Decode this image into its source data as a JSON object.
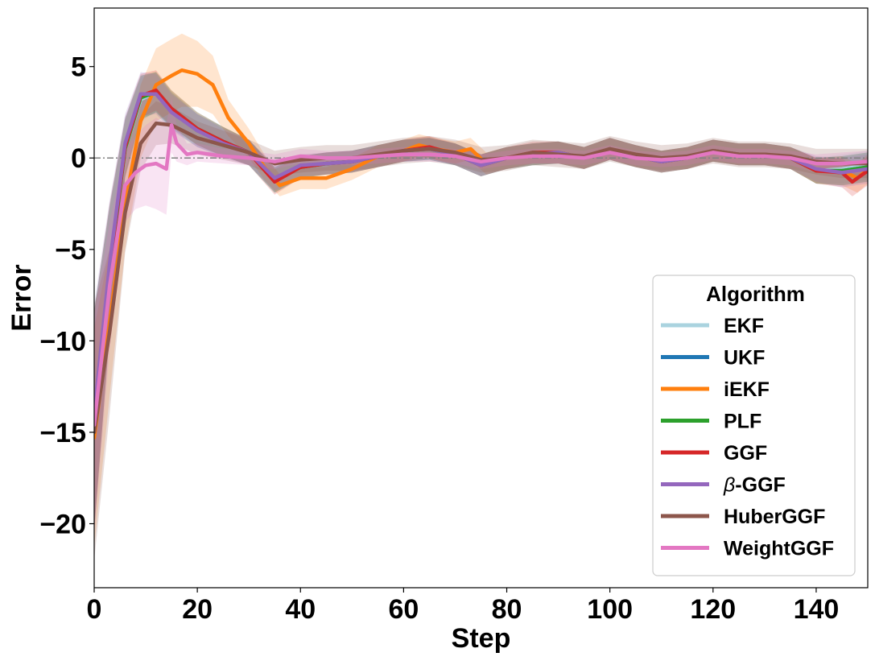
{
  "chart_data": {
    "type": "line",
    "title": "",
    "xlabel": "Step",
    "ylabel": "Error",
    "xlim": [
      0,
      150
    ],
    "ylim": [
      -23.5,
      8.2
    ],
    "xticks": [
      0,
      20,
      40,
      60,
      80,
      100,
      120,
      140
    ],
    "yticks": [
      5,
      0,
      -5,
      -10,
      -15,
      -20
    ],
    "ytick_labels": [
      "5",
      "0",
      "−5",
      "−10",
      "−15",
      "−20"
    ],
    "reference_line": {
      "y": 0,
      "style": "dash-dot",
      "color": "#808080"
    },
    "grid": false,
    "legend": {
      "title": "Algorithm",
      "placement": "lower-right",
      "entries": [
        "EKF",
        "UKF",
        "iEKF",
        "PLF",
        "GGF",
        "β-GGF",
        "HuberGGF",
        "WeightGGF"
      ]
    },
    "series": [
      {
        "name": "EKF",
        "color": "#aad3df",
        "band_color": "#aad3df",
        "x": [
          0,
          3,
          6,
          9,
          12,
          15,
          20,
          25,
          30,
          35,
          40,
          45,
          50,
          55,
          60,
          65,
          70,
          75,
          80,
          85,
          90,
          95,
          100,
          105,
          110,
          115,
          120,
          125,
          130,
          135,
          140,
          145,
          150
        ],
        "y": [
          -14.5,
          -6,
          0.5,
          3.2,
          3.6,
          2.6,
          1.6,
          0.9,
          0.3,
          -1.2,
          -0.5,
          -0.3,
          -0.2,
          0.1,
          0.4,
          0.5,
          0.2,
          -0.4,
          0.0,
          0.2,
          0.3,
          0.0,
          0.5,
          0.1,
          -0.2,
          0.0,
          0.4,
          0.2,
          0.2,
          0.0,
          -0.7,
          -0.6,
          -0.4
        ],
        "spread": [
          6,
          3.5,
          1.6,
          1.2,
          1.1,
          1.0,
          0.9,
          0.8,
          0.7,
          0.7,
          0.6,
          0.6,
          0.6,
          0.6,
          0.6,
          0.6,
          0.6,
          0.6,
          0.6,
          0.6,
          0.6,
          0.6,
          0.6,
          0.6,
          0.6,
          0.6,
          0.6,
          0.6,
          0.6,
          0.6,
          0.7,
          0.8,
          0.8
        ]
      },
      {
        "name": "UKF",
        "color": "#1f77b4",
        "band_color": "#1f77b4",
        "x": [
          0,
          3,
          6,
          9,
          12,
          15,
          20,
          25,
          30,
          35,
          40,
          45,
          50,
          55,
          60,
          65,
          70,
          75,
          80,
          85,
          90,
          95,
          100,
          105,
          110,
          115,
          120,
          125,
          130,
          135,
          140,
          145,
          150
        ],
        "y": [
          -14.3,
          -6.2,
          0.6,
          3.3,
          3.6,
          2.6,
          1.5,
          0.9,
          0.3,
          -1.2,
          -0.5,
          -0.3,
          -0.2,
          0.1,
          0.4,
          0.5,
          0.2,
          -0.4,
          0.0,
          0.2,
          0.3,
          0.0,
          0.5,
          0.1,
          -0.2,
          0.0,
          0.4,
          0.2,
          0.2,
          0.0,
          -0.7,
          -0.7,
          -0.5
        ],
        "spread": [
          6,
          3.5,
          1.6,
          1.2,
          1.1,
          1.0,
          0.9,
          0.8,
          0.7,
          0.7,
          0.6,
          0.6,
          0.6,
          0.6,
          0.6,
          0.6,
          0.6,
          0.6,
          0.6,
          0.6,
          0.6,
          0.6,
          0.6,
          0.6,
          0.6,
          0.6,
          0.6,
          0.6,
          0.6,
          0.6,
          0.7,
          0.8,
          0.8
        ]
      },
      {
        "name": "iEKF",
        "color": "#ff7f0e",
        "band_color": "#ff7f0e",
        "x": [
          0,
          3,
          6,
          9,
          12,
          15,
          17,
          20,
          23,
          26,
          30,
          33,
          36,
          40,
          45,
          50,
          55,
          60,
          63,
          66,
          70,
          73,
          76,
          80,
          85,
          90,
          95,
          100,
          105,
          110,
          115,
          120,
          125,
          130,
          135,
          140,
          145,
          148,
          150
        ],
        "y": [
          -15.3,
          -9,
          -2.5,
          2.0,
          4.0,
          4.5,
          4.8,
          4.6,
          4.0,
          2.2,
          0.8,
          -0.5,
          -1.5,
          -1.1,
          -1.1,
          -0.6,
          0.1,
          0.4,
          0.7,
          0.5,
          0.3,
          0.5,
          -0.3,
          0.0,
          0.2,
          0.3,
          0.0,
          0.5,
          0.1,
          -0.2,
          0.0,
          0.4,
          0.2,
          0.2,
          0.0,
          -0.7,
          -0.7,
          -1.1,
          -0.6
        ],
        "spread": [
          6,
          4,
          2.5,
          2.0,
          2.0,
          2.0,
          2.0,
          1.8,
          1.6,
          1.0,
          0.8,
          0.7,
          0.6,
          0.6,
          0.6,
          0.6,
          0.6,
          0.6,
          0.6,
          0.6,
          0.6,
          0.6,
          0.6,
          0.6,
          0.6,
          0.6,
          0.6,
          0.6,
          0.6,
          0.6,
          0.6,
          0.6,
          0.6,
          0.6,
          0.6,
          0.7,
          0.8,
          0.8,
          0.8
        ]
      },
      {
        "name": "PLF",
        "color": "#2ca02c",
        "band_color": "#2ca02c",
        "x": [
          0,
          3,
          6,
          9,
          12,
          15,
          20,
          25,
          30,
          35,
          40,
          45,
          50,
          55,
          60,
          65,
          70,
          75,
          80,
          85,
          90,
          95,
          100,
          105,
          110,
          115,
          120,
          125,
          130,
          135,
          140,
          145,
          150
        ],
        "y": [
          -14.4,
          -6.1,
          0.5,
          3.3,
          3.6,
          2.7,
          1.6,
          0.9,
          0.3,
          -1.2,
          -0.5,
          -0.3,
          -0.2,
          0.1,
          0.4,
          0.5,
          0.2,
          -0.4,
          0.0,
          0.2,
          0.3,
          0.0,
          0.5,
          0.1,
          -0.2,
          0.0,
          0.4,
          0.2,
          0.2,
          0.0,
          -0.7,
          -0.7,
          -0.5
        ],
        "spread": [
          6,
          3.5,
          1.6,
          1.2,
          1.1,
          1.0,
          0.9,
          0.8,
          0.7,
          0.7,
          0.6,
          0.6,
          0.6,
          0.6,
          0.6,
          0.6,
          0.6,
          0.6,
          0.6,
          0.6,
          0.6,
          0.6,
          0.6,
          0.6,
          0.6,
          0.6,
          0.6,
          0.6,
          0.6,
          0.6,
          0.7,
          0.8,
          0.8
        ]
      },
      {
        "name": "GGF",
        "color": "#d62728",
        "band_color": "#d62728",
        "x": [
          0,
          3,
          6,
          9,
          12,
          15,
          20,
          25,
          30,
          35,
          40,
          45,
          50,
          55,
          60,
          65,
          70,
          75,
          80,
          85,
          90,
          95,
          100,
          105,
          110,
          115,
          120,
          125,
          130,
          135,
          140,
          145,
          147,
          150
        ],
        "y": [
          -14.4,
          -6.0,
          0.6,
          3.4,
          3.7,
          2.7,
          1.6,
          0.9,
          0.3,
          -1.3,
          -0.5,
          -0.3,
          -0.2,
          0.1,
          0.4,
          0.6,
          0.2,
          -0.4,
          0.0,
          0.3,
          0.3,
          0.0,
          0.5,
          0.1,
          -0.2,
          0.0,
          0.4,
          0.2,
          0.2,
          0.0,
          -0.7,
          -0.8,
          -1.3,
          -0.7
        ],
        "spread": [
          6,
          3.5,
          1.6,
          1.2,
          1.1,
          1.0,
          0.9,
          0.8,
          0.7,
          0.7,
          0.6,
          0.6,
          0.6,
          0.6,
          0.6,
          0.6,
          0.6,
          0.6,
          0.6,
          0.6,
          0.6,
          0.6,
          0.6,
          0.6,
          0.6,
          0.6,
          0.6,
          0.6,
          0.6,
          0.6,
          0.7,
          0.8,
          0.8,
          0.8
        ]
      },
      {
        "name": "β-GGF",
        "color": "#9467bd",
        "band_color": "#9467bd",
        "x": [
          0,
          3,
          6,
          9,
          12,
          15,
          20,
          25,
          30,
          35,
          40,
          45,
          50,
          55,
          60,
          65,
          70,
          75,
          80,
          85,
          90,
          95,
          100,
          105,
          110,
          115,
          120,
          125,
          130,
          135,
          140,
          145,
          150
        ],
        "y": [
          -14.0,
          -5.8,
          0.8,
          3.5,
          3.5,
          2.5,
          1.5,
          0.8,
          0.3,
          -1.1,
          -0.4,
          -0.3,
          -0.2,
          0.1,
          0.4,
          0.5,
          0.2,
          -0.4,
          0.0,
          0.2,
          0.3,
          0.0,
          0.5,
          0.1,
          -0.2,
          0.0,
          0.4,
          0.2,
          0.2,
          0.0,
          -0.6,
          -0.8,
          -0.6
        ],
        "spread": [
          6,
          3.5,
          1.6,
          1.2,
          1.1,
          1.0,
          0.9,
          0.8,
          0.7,
          0.7,
          0.6,
          0.6,
          0.6,
          0.6,
          0.6,
          0.6,
          0.6,
          0.6,
          0.6,
          0.6,
          0.6,
          0.6,
          0.6,
          0.6,
          0.6,
          0.6,
          0.6,
          0.6,
          0.6,
          0.6,
          0.7,
          0.8,
          0.8
        ]
      },
      {
        "name": "HuberGGF",
        "color": "#8c564b",
        "band_color": "#8c564b",
        "x": [
          0,
          3,
          6,
          9,
          12,
          15,
          20,
          25,
          30,
          35,
          40,
          45,
          50,
          55,
          60,
          65,
          70,
          75,
          80,
          85,
          90,
          95,
          100,
          105,
          110,
          115,
          120,
          125,
          130,
          135,
          140,
          145,
          150
        ],
        "y": [
          -15.0,
          -9.5,
          -3.0,
          0.8,
          1.9,
          1.8,
          1.1,
          0.7,
          0.3,
          -0.3,
          -0.1,
          0.0,
          0.0,
          0.2,
          0.4,
          0.5,
          0.3,
          -0.1,
          0.0,
          0.3,
          0.2,
          0.1,
          0.5,
          0.2,
          0.0,
          0.1,
          0.4,
          0.2,
          0.2,
          0.1,
          -0.2,
          -0.3,
          -0.3
        ],
        "spread": [
          7,
          4.5,
          2.2,
          1.5,
          1.2,
          1.0,
          0.9,
          0.8,
          0.7,
          0.7,
          0.7,
          0.7,
          0.7,
          0.7,
          0.7,
          0.7,
          0.7,
          0.7,
          0.7,
          0.7,
          0.7,
          0.7,
          0.7,
          0.7,
          0.7,
          0.7,
          0.7,
          0.7,
          0.7,
          0.7,
          0.7,
          0.8,
          0.8
        ]
      },
      {
        "name": "WeightGGF",
        "color": "#e377c2",
        "band_color": "#e377c2",
        "x": [
          0,
          3,
          6,
          8,
          10,
          12,
          14,
          15,
          16,
          18,
          20,
          25,
          30,
          35,
          40,
          45,
          50,
          55,
          60,
          65,
          70,
          75,
          80,
          85,
          90,
          95,
          100,
          105,
          110,
          115,
          120,
          125,
          130,
          135,
          140,
          145,
          150
        ],
        "y": [
          -14.6,
          -7.0,
          -1.5,
          -0.8,
          -0.4,
          -0.3,
          -0.6,
          1.8,
          0.8,
          0.2,
          0.3,
          0.1,
          0.0,
          -0.2,
          0.1,
          0.0,
          0.0,
          0.1,
          0.2,
          0.2,
          0.1,
          -0.2,
          0.0,
          0.1,
          0.1,
          0.0,
          0.3,
          0.0,
          -0.1,
          0.0,
          0.3,
          0.1,
          0.1,
          0.0,
          -0.3,
          -0.3,
          -0.2
        ],
        "spread": [
          6,
          3.5,
          2.0,
          2.0,
          2.2,
          2.5,
          2.5,
          1.5,
          1.0,
          0.6,
          0.5,
          0.4,
          0.4,
          0.4,
          0.4,
          0.4,
          0.4,
          0.4,
          0.4,
          0.4,
          0.4,
          0.4,
          0.4,
          0.4,
          0.4,
          0.4,
          0.4,
          0.4,
          0.4,
          0.4,
          0.4,
          0.4,
          0.4,
          0.4,
          0.5,
          0.6,
          0.6
        ]
      }
    ]
  }
}
